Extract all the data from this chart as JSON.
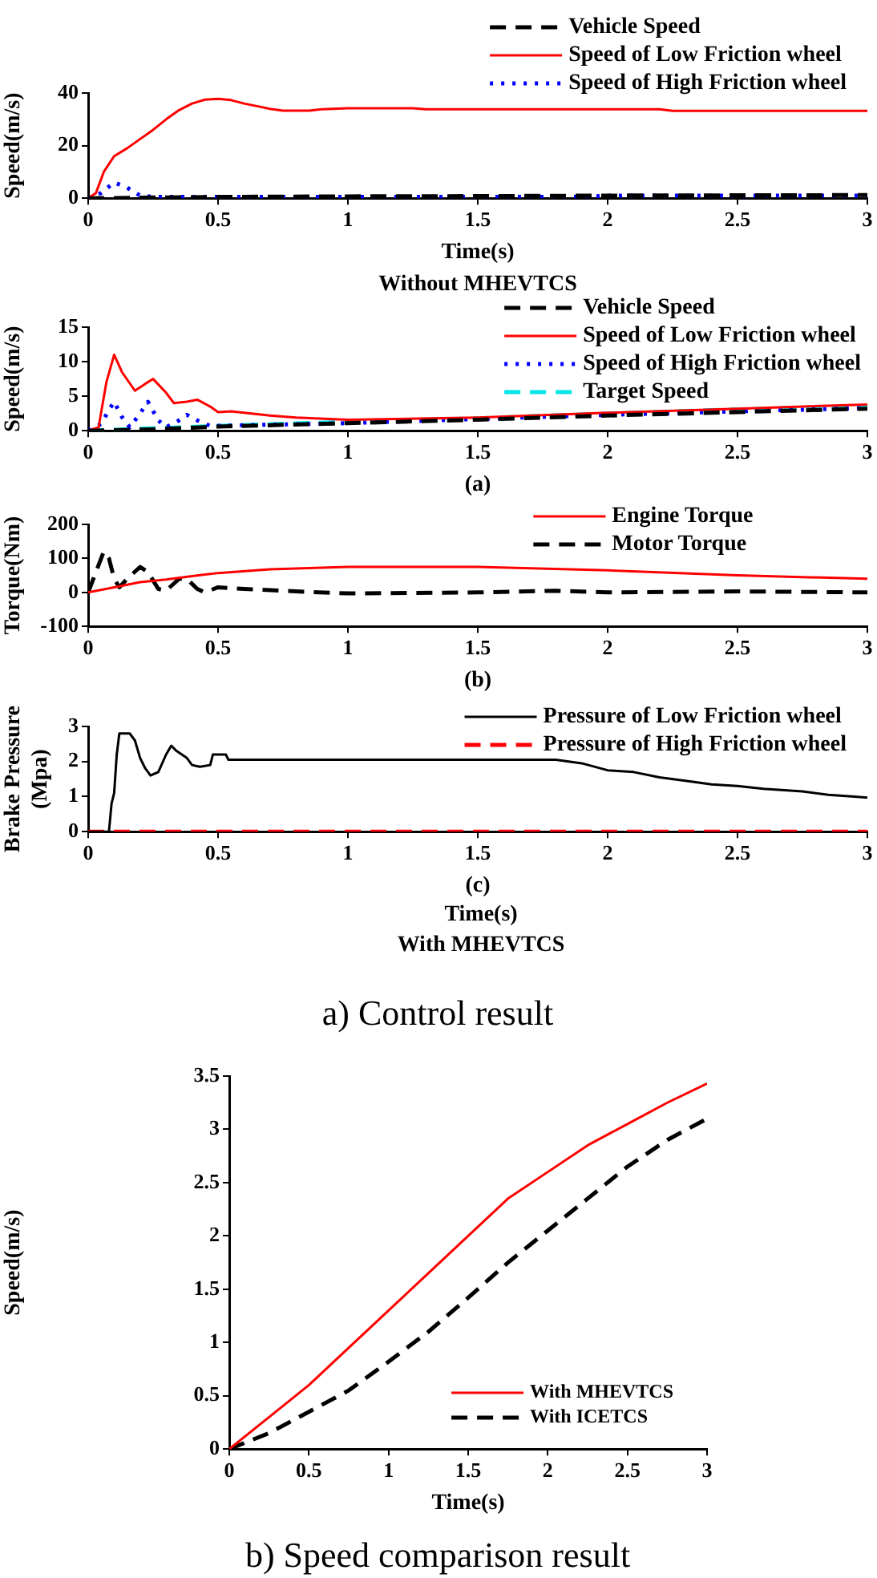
{
  "chart_data": [
    {
      "type": "line",
      "xlabel": "Time(s)",
      "ylabel": "Speed(m/s)",
      "xlim": [
        0,
        3
      ],
      "xticks": [
        0,
        0.5,
        1,
        1.5,
        2,
        2.5,
        3
      ],
      "ylim": [
        0,
        40
      ],
      "yticks": [
        0,
        20,
        40
      ],
      "legend": "top right",
      "annotations": [
        "Without MHEVTCS"
      ],
      "series": [
        {
          "name": "Vehicle Speed",
          "color": "#000000",
          "line_style": "dashed",
          "x": [
            0,
            0.5,
            1,
            1.5,
            2,
            2.5,
            3
          ],
          "values": [
            0,
            0.5,
            0.7,
            0.8,
            1,
            1.1,
            1.2
          ]
        },
        {
          "name": "Speed of Low Friction wheel",
          "color": "#ff0000",
          "line_style": "solid",
          "x": [
            0,
            0.03,
            0.06,
            0.1,
            0.15,
            0.2,
            0.25,
            0.3,
            0.35,
            0.4,
            0.45,
            0.5,
            0.55,
            0.6,
            0.65,
            0.7,
            0.75,
            0.85,
            0.9,
            1,
            1.25,
            1.3,
            2.2,
            2.25,
            3
          ],
          "values": [
            0,
            2,
            10,
            16,
            19,
            22.5,
            26,
            30,
            33.5,
            36,
            37.5,
            37.8,
            37.3,
            36,
            35,
            34,
            33.3,
            33.3,
            33.8,
            34.2,
            34.2,
            33.8,
            33.8,
            33.2,
            33.2
          ]
        },
        {
          "name": "Speed of High Friction wheel",
          "color": "#0000ff",
          "line_style": "dotted",
          "x": [
            0,
            0.05,
            0.1,
            0.15,
            0.2,
            0.25,
            1.9,
            2,
            3
          ],
          "values": [
            0,
            2,
            6,
            4,
            1,
            0.5,
            0.5,
            1,
            1
          ]
        }
      ]
    },
    {
      "type": "line",
      "xlabel": "(a)",
      "ylabel": "Speed(m/s)",
      "xlim": [
        0,
        3
      ],
      "xticks": [
        0,
        0.5,
        1,
        1.5,
        2,
        2.5,
        3
      ],
      "ylim": [
        0,
        15
      ],
      "yticks": [
        0,
        5,
        10,
        15
      ],
      "legend": "top right",
      "series": [
        {
          "name": "Vehicle Speed",
          "color": "#000000",
          "line_style": "dashed",
          "x": [
            0,
            0.25,
            0.5,
            1,
            1.5,
            2,
            2.5,
            3
          ],
          "values": [
            0,
            0.2,
            0.6,
            1.1,
            1.6,
            2.2,
            2.7,
            3.2
          ]
        },
        {
          "name": "Speed of Low Friction wheel",
          "color": "#ff0000",
          "line_style": "solid",
          "x": [
            0,
            0.04,
            0.07,
            0.1,
            0.13,
            0.18,
            0.22,
            0.25,
            0.3,
            0.33,
            0.38,
            0.42,
            0.47,
            0.5,
            0.55,
            0.6,
            0.7,
            0.8,
            1,
            1.5,
            2,
            2.5,
            3
          ],
          "values": [
            0,
            0.5,
            7,
            11,
            8.5,
            5.8,
            6.8,
            7.5,
            5.5,
            4,
            4.2,
            4.5,
            3.5,
            2.7,
            2.8,
            2.6,
            2.2,
            1.9,
            1.6,
            1.9,
            2.6,
            3.2,
            3.8
          ]
        },
        {
          "name": "Speed of High Friction wheel",
          "color": "#0000ff",
          "line_style": "dotted",
          "x": [
            0,
            0.05,
            0.08,
            0.1,
            0.13,
            0.16,
            0.2,
            0.23,
            0.27,
            0.3,
            0.35,
            0.38,
            0.42,
            0.47,
            1,
            1.5,
            2,
            2.5,
            3
          ],
          "values": [
            0,
            1,
            3,
            4.2,
            2,
            0.5,
            2.5,
            4.2,
            1.5,
            0.5,
            1.5,
            2.3,
            1.5,
            0.7,
            1.1,
            1.7,
            2.3,
            2.8,
            3.3
          ]
        },
        {
          "name": "Target Speed",
          "color": "#00e5e5",
          "line_style": "dashed",
          "x": [
            0,
            0.5,
            1,
            1.5,
            2,
            2.5,
            3
          ],
          "values": [
            0,
            0.7,
            1.3,
            1.8,
            2.5,
            3.1,
            3.6
          ]
        }
      ]
    },
    {
      "type": "line",
      "xlabel": "(b)",
      "ylabel": "Torque(Nm)",
      "xlim": [
        0,
        3
      ],
      "xticks": [
        0,
        0.5,
        1,
        1.5,
        2,
        2.5,
        3
      ],
      "ylim": [
        -100,
        200
      ],
      "yticks": [
        -100,
        0,
        100,
        200
      ],
      "legend": "top right",
      "series": [
        {
          "name": "Engine Torque",
          "color": "#ff0000",
          "line_style": "solid",
          "x": [
            0,
            0.1,
            0.2,
            0.3,
            0.4,
            0.5,
            0.7,
            1,
            1.5,
            2,
            2.5,
            3
          ],
          "values": [
            0,
            15,
            30,
            38,
            48,
            57,
            68,
            75,
            75,
            65,
            50,
            40
          ]
        },
        {
          "name": "Motor Torque",
          "color": "#000000",
          "line_style": "dashed",
          "x": [
            0,
            0.03,
            0.06,
            0.08,
            0.1,
            0.12,
            0.15,
            0.2,
            0.23,
            0.27,
            0.3,
            0.35,
            0.38,
            0.42,
            0.45,
            0.5,
            0.6,
            0.8,
            1,
            1.5,
            1.8,
            2,
            2.5,
            3
          ],
          "values": [
            0,
            60,
            120,
            100,
            40,
            15,
            40,
            75,
            60,
            10,
            5,
            40,
            40,
            10,
            0,
            15,
            10,
            3,
            -3,
            0,
            5,
            0,
            3,
            0
          ]
        }
      ]
    },
    {
      "type": "line",
      "xlabel": "(c)",
      "ylabel": "Brake Pressure (Mpa)",
      "xlim": [
        0,
        3
      ],
      "xticks": [
        0,
        0.5,
        1,
        1.5,
        2,
        2.5,
        3
      ],
      "ylim": [
        0,
        3
      ],
      "yticks": [
        0,
        1,
        2,
        3
      ],
      "legend": "top right",
      "annotations": [
        "Time(s)",
        "With MHEVTCS",
        "a) Control result"
      ],
      "series": [
        {
          "name": "Pressure of Low Friction wheel",
          "color": "#000000",
          "line_style": "solid",
          "x": [
            0,
            0.08,
            0.09,
            0.1,
            0.11,
            0.12,
            0.16,
            0.18,
            0.2,
            0.22,
            0.24,
            0.27,
            0.3,
            0.32,
            0.34,
            0.38,
            0.4,
            0.43,
            0.47,
            0.48,
            0.53,
            0.54,
            1.8,
            1.9,
            2,
            2.1,
            2.2,
            2.3,
            2.4,
            2.5,
            2.6,
            2.75,
            2.85,
            2.95,
            3
          ],
          "values": [
            0,
            0,
            0.8,
            1.1,
            2.2,
            2.8,
            2.8,
            2.6,
            2.1,
            1.8,
            1.6,
            1.7,
            2.2,
            2.45,
            2.3,
            2.1,
            1.9,
            1.85,
            1.9,
            2.2,
            2.2,
            2.05,
            2.05,
            1.95,
            1.75,
            1.7,
            1.55,
            1.45,
            1.35,
            1.3,
            1.22,
            1.15,
            1.05,
            1,
            0.97
          ]
        },
        {
          "name": "Pressure of High Friction wheel",
          "color": "#ff0000",
          "line_style": "dashed",
          "x": [
            0,
            3
          ],
          "values": [
            0,
            0
          ]
        }
      ]
    },
    {
      "type": "line",
      "xlabel": "Time(s)",
      "ylabel": "Speed(m/s)",
      "xlim": [
        0,
        3
      ],
      "xticks": [
        0,
        0.5,
        1,
        1.5,
        2,
        2.5,
        3
      ],
      "ylim": [
        0,
        3.5
      ],
      "yticks": [
        0,
        0.5,
        1,
        1.5,
        2,
        2.5,
        3,
        3.5
      ],
      "legend": "bottom right",
      "annotations": [
        "b) Speed comparison result"
      ],
      "series": [
        {
          "name": "With MHEVTCS",
          "color": "#ff0000",
          "line_style": "solid",
          "x": [
            0,
            0.25,
            0.5,
            0.75,
            1,
            1.25,
            1.5,
            1.75,
            2,
            2.25,
            2.5,
            2.75,
            3
          ],
          "values": [
            0,
            0.3,
            0.6,
            0.95,
            1.3,
            1.65,
            2,
            2.35,
            2.6,
            2.85,
            3.05,
            3.25,
            3.43
          ]
        },
        {
          "name": "With ICETCS",
          "color": "#000000",
          "line_style": "dashed",
          "x": [
            0,
            0.25,
            0.5,
            0.75,
            1,
            1.25,
            1.5,
            1.75,
            2,
            2.25,
            2.5,
            2.75,
            3
          ],
          "values": [
            0,
            0.15,
            0.35,
            0.55,
            0.82,
            1.1,
            1.42,
            1.75,
            2.05,
            2.35,
            2.65,
            2.9,
            3.1
          ]
        }
      ]
    }
  ]
}
